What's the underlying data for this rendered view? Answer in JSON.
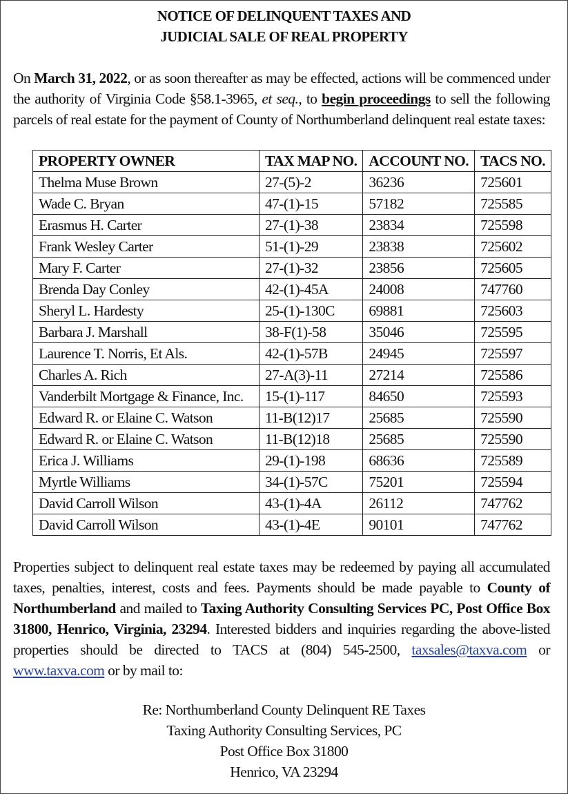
{
  "title": [
    "NOTICE OF DELINQUENT TAXES AND",
    "JUDICIAL SALE OF REAL PROPERTY"
  ],
  "intro": {
    "t1": "On ",
    "date": "March 31, 2022",
    "t2": ", or as soon thereafter as may be effected, actions will be commenced under the authority of Virginia Code §58.1-3965, ",
    "etseq": "et seq.",
    "t3": ", to ",
    "begin": "begin proceedings",
    "t4": " to sell the following parcels of real estate for the payment of County of Northumberland delinquent real estate taxes:"
  },
  "table": {
    "headers": [
      "PROPERTY OWNER",
      "TAX MAP NO.",
      "ACCOUNT NO.",
      "TACS NO."
    ],
    "rows": [
      [
        "Thelma Muse Brown",
        "27-(5)-2",
        "36236",
        "725601"
      ],
      [
        "Wade C. Bryan",
        "47-(1)-15",
        "57182",
        "725585"
      ],
      [
        "Erasmus H. Carter",
        "27-(1)-38",
        "23834",
        "725598"
      ],
      [
        "Frank Wesley Carter",
        "51-(1)-29",
        "23838",
        "725602"
      ],
      [
        "Mary F. Carter",
        "27-(1)-32",
        "23856",
        "725605"
      ],
      [
        "Brenda Day Conley",
        "42-(1)-45A",
        "24008",
        "747760"
      ],
      [
        "Sheryl L. Hardesty",
        "25-(1)-130C",
        "69881",
        "725603"
      ],
      [
        "Barbara J. Marshall",
        "38-F(1)-58",
        "35046",
        "725595"
      ],
      [
        "Laurence T. Norris, Et Als.",
        "42-(1)-57B",
        "24945",
        "725597"
      ],
      [
        "Charles A. Rich",
        "27-A(3)-11",
        "27214",
        "725586"
      ],
      [
        "Vanderbilt Mortgage & Finance, Inc.",
        "15-(1)-117",
        "84650",
        "725593"
      ],
      [
        "Edward R. or Elaine C. Watson",
        "11-B(12)17",
        "25685",
        "725590"
      ],
      [
        "Edward R. or Elaine C. Watson",
        "11-B(12)18",
        "25685",
        "725590"
      ],
      [
        "Erica J. Williams",
        "29-(1)-198",
        "68636",
        "725589"
      ],
      [
        "Myrtle Williams",
        "34-(1)-57C",
        "75201",
        "725594"
      ],
      [
        "David Carroll Wilson",
        "43-(1)-4A",
        "26112",
        "747762"
      ],
      [
        "David Carroll Wilson",
        "43-(1)-4E",
        "90101",
        "747762"
      ]
    ]
  },
  "redeem": {
    "t1": "Properties subject to delinquent real estate taxes may be redeemed by paying all accumulated taxes, penalties, interest, costs and fees. Payments should be made payable to ",
    "county": "County of Northumberland",
    "t2": " and mailed to ",
    "tacs": "Taxing Authority Consulting Services PC, Post Office Box 31800, Henrico, Virginia, 23294",
    "t3": ". Interested bidders and inquiries regarding the above-listed properties should be directed to TACS at (804) 545-2500, ",
    "email": "taxsales@taxva.com",
    "t4": " or ",
    "web": "www.taxva.com",
    "t5": " or by mail to:"
  },
  "address": [
    "Re: Northumberland County Delinquent RE Taxes",
    "Taxing Authority Consulting Services, PC",
    "Post Office Box 31800",
    "Henrico, VA  23294"
  ],
  "colors": {
    "link": "#1f3fbf"
  }
}
